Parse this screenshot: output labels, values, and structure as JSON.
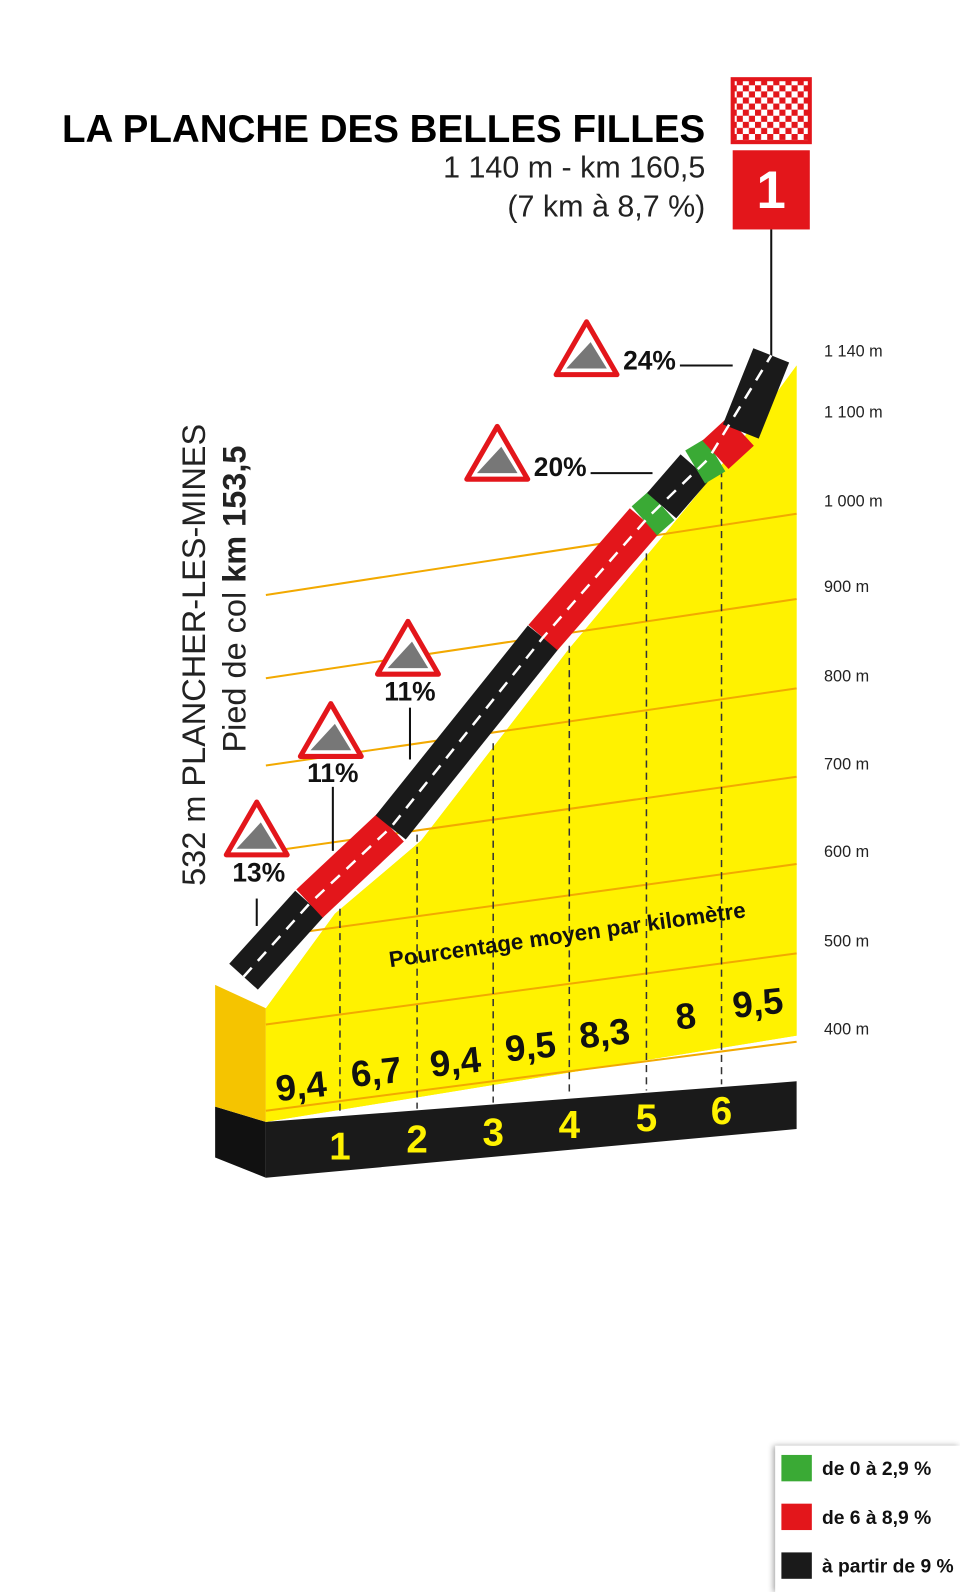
{
  "header": {
    "title": "LA PLANCHE DES BELLES FILLES",
    "subtitle": "1 140 m - km 160,5",
    "detail": "(7 km à 8,7 %)",
    "badge": "1"
  },
  "start": {
    "place": "532 m PLANCHER-LES-MINES",
    "label": "Pied de col",
    "km": "km 153,5"
  },
  "elevation_labels": [
    "1 140 m",
    "1 100 m",
    "1 000 m",
    "900 m",
    "800 m",
    "700 m",
    "600 m",
    "500 m",
    "400 m"
  ],
  "gradient_signs": [
    "13%",
    "11%",
    "11%",
    "20%",
    "24%"
  ],
  "caption": "Pourcentage moyen par kilomètre",
  "km_gradients": [
    "9,4",
    "6,7",
    "9,4",
    "9,5",
    "8,3",
    "8",
    "9,5"
  ],
  "km_markers": [
    "1",
    "2",
    "3",
    "4",
    "5",
    "6"
  ],
  "legend": [
    {
      "label": "de 0 à 2,9 %",
      "color": "#3aaa35"
    },
    {
      "label": "de 6 à 8,9 %",
      "color": "#e3161b"
    },
    {
      "label": "à partir de 9 %",
      "color": "#1a1a1a"
    }
  ]
}
